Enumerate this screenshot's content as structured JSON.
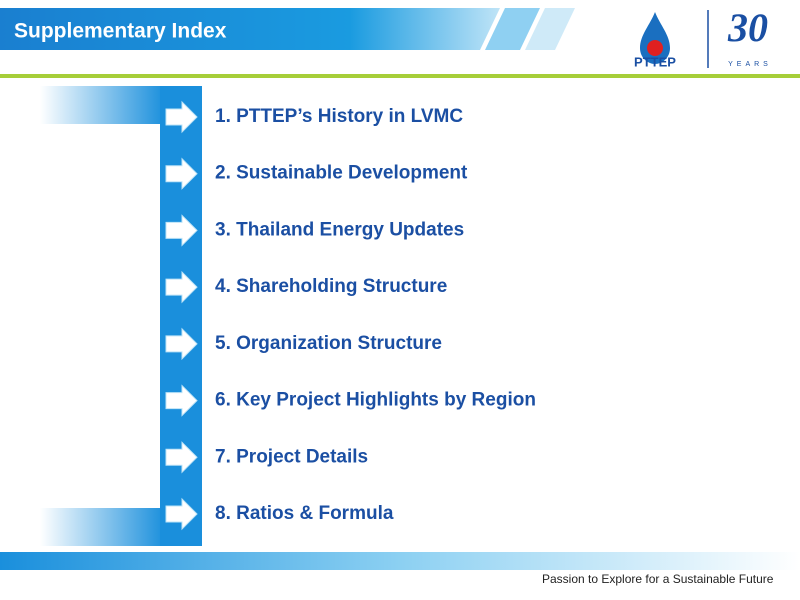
{
  "header": {
    "title": "Supplementary Index",
    "logo_name": "PTTEP",
    "logo_number": "30",
    "logo_years": "YEARS"
  },
  "items": [
    "1. PTTEP’s History in LVMC",
    "2. Sustainable Development",
    "3. Thailand Energy Updates",
    "4. Shareholding Structure",
    "5. Organization Structure",
    "6. Key Project Highlights by Region",
    "7. Project Details",
    "8. Ratios & Formula"
  ],
  "footer": {
    "tagline": "Passion to Explore for a Sustainable Future"
  }
}
